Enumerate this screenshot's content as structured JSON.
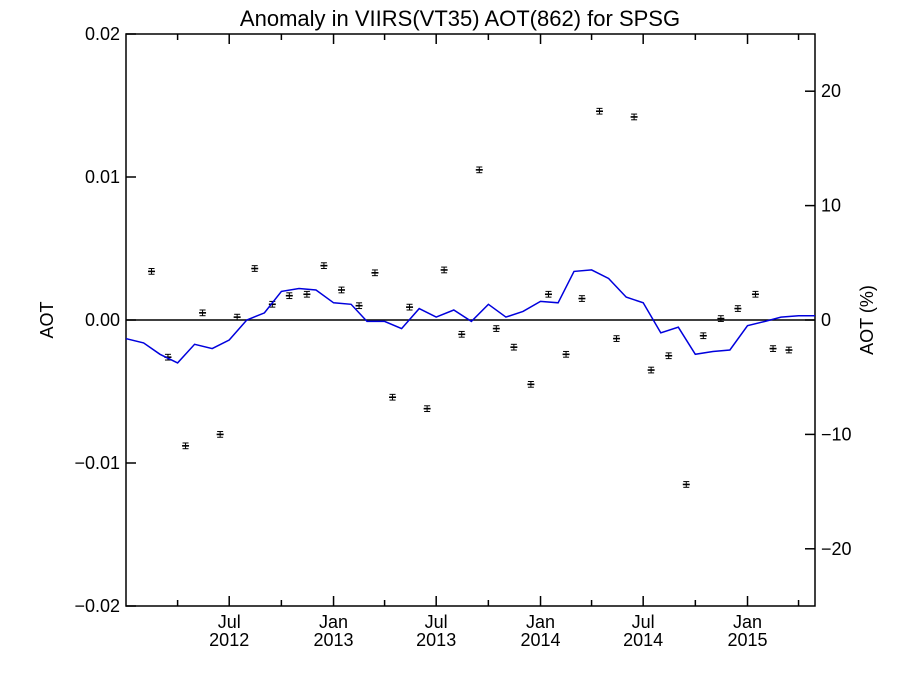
{
  "chart_data": {
    "type": "line",
    "title": "Anomaly in VIIRS(VT35) AOT(862) for SPSG",
    "ylabel": "AOT",
    "y2label": "AOT (%)",
    "xlabel": "",
    "ylim": [
      -0.02,
      0.02
    ],
    "y2lim": [
      -25,
      25
    ],
    "xlim": [
      "2012-01-01",
      "2015-04-30"
    ],
    "y_ticks": [
      {
        "value": 0.02,
        "label": "0.02"
      },
      {
        "value": 0.01,
        "label": "0.01"
      },
      {
        "value": 0.0,
        "label": "0.00"
      },
      {
        "value": -0.01,
        "label": "−0.01"
      },
      {
        "value": -0.02,
        "label": "−0.02"
      }
    ],
    "y2_ticks": [
      {
        "value": 20,
        "label": "20"
      },
      {
        "value": 10,
        "label": "10"
      },
      {
        "value": 0,
        "label": "0"
      },
      {
        "value": -10,
        "label": "−10"
      },
      {
        "value": -20,
        "label": "−20"
      }
    ],
    "x_ticks": [
      {
        "date": "2012-07-01",
        "label1": "Jul",
        "label2": "2012"
      },
      {
        "date": "2013-01-01",
        "label1": "Jan",
        "label2": "2013"
      },
      {
        "date": "2013-07-01",
        "label1": "Jul",
        "label2": "2013"
      },
      {
        "date": "2014-01-01",
        "label1": "Jan",
        "label2": "2014"
      },
      {
        "date": "2014-07-01",
        "label1": "Jul",
        "label2": "2014"
      },
      {
        "date": "2015-01-01",
        "label1": "Jan",
        "label2": "2015"
      }
    ],
    "x_minor_ticks": [
      "2012-04-01",
      "2012-10-01",
      "2013-04-01",
      "2013-10-01",
      "2014-04-01",
      "2014-10-01",
      "2015-04-01"
    ],
    "zero_line": true,
    "series": [
      {
        "kind": "errorbar-points",
        "axis": "left",
        "color": "#000000",
        "x": [
          "2012-02-15",
          "2012-03-15",
          "2012-04-15",
          "2012-05-15",
          "2012-06-15",
          "2012-07-15",
          "2012-08-15",
          "2012-09-15",
          "2012-10-15",
          "2012-11-15",
          "2012-12-15",
          "2013-01-15",
          "2013-02-15",
          "2013-03-15",
          "2013-04-15",
          "2013-05-15",
          "2013-06-15",
          "2013-07-15",
          "2013-08-15",
          "2013-09-15",
          "2013-10-15",
          "2013-11-15",
          "2013-12-15",
          "2014-01-15",
          "2014-02-15",
          "2014-03-15",
          "2014-04-15",
          "2014-05-15",
          "2014-06-15",
          "2014-07-15",
          "2014-08-15",
          "2014-09-15",
          "2014-10-15",
          "2014-11-15",
          "2014-12-15",
          "2015-01-15",
          "2015-02-15",
          "2015-03-15"
        ],
        "y": [
          0.0034,
          -0.0026,
          -0.0088,
          0.0005,
          -0.008,
          0.0002,
          0.0036,
          0.0011,
          0.0017,
          0.0018,
          0.0038,
          0.0021,
          0.001,
          0.0033,
          -0.0054,
          0.0009,
          -0.0062,
          0.0035,
          -0.001,
          0.0105,
          -0.0006,
          -0.0019,
          -0.0045,
          0.0018,
          -0.0024,
          0.0015,
          0.0146,
          -0.0013,
          0.0142,
          -0.0035,
          -0.0025,
          -0.0115,
          -0.0011,
          0.0001,
          0.0008,
          0.0018,
          -0.002,
          -0.0021
        ],
        "err": 0.0002
      },
      {
        "kind": "line",
        "axis": "left",
        "color": "#0000dd",
        "x": [
          "2012-01-01",
          "2012-02-01",
          "2012-03-01",
          "2012-04-01",
          "2012-05-01",
          "2012-06-01",
          "2012-07-01",
          "2012-08-01",
          "2012-09-01",
          "2012-10-01",
          "2012-11-01",
          "2012-12-01",
          "2013-01-01",
          "2013-02-01",
          "2013-03-01",
          "2013-04-01",
          "2013-05-01",
          "2013-06-01",
          "2013-07-01",
          "2013-08-01",
          "2013-09-01",
          "2013-10-01",
          "2013-11-01",
          "2013-12-01",
          "2014-01-01",
          "2014-02-01",
          "2014-03-01",
          "2014-04-01",
          "2014-05-01",
          "2014-06-01",
          "2014-07-01",
          "2014-08-01",
          "2014-09-01",
          "2014-10-01",
          "2014-11-01",
          "2014-12-01",
          "2015-01-01",
          "2015-02-01",
          "2015-03-01",
          "2015-04-01",
          "2015-04-30"
        ],
        "y": [
          -0.0013,
          -0.0016,
          -0.0024,
          -0.003,
          -0.0017,
          -0.002,
          -0.0014,
          0.0,
          0.0005,
          0.002,
          0.0022,
          0.0021,
          0.0012,
          0.0011,
          -0.0001,
          -0.0001,
          -0.0006,
          0.0008,
          0.0002,
          0.0007,
          -0.0001,
          0.0011,
          0.0002,
          0.0006,
          0.0013,
          0.0012,
          0.0034,
          0.0035,
          0.0029,
          0.0016,
          0.0012,
          -0.0009,
          -0.0005,
          -0.0024,
          -0.0022,
          -0.0021,
          -0.0004,
          -0.0001,
          0.0002,
          0.0003,
          0.0003
        ]
      }
    ]
  }
}
